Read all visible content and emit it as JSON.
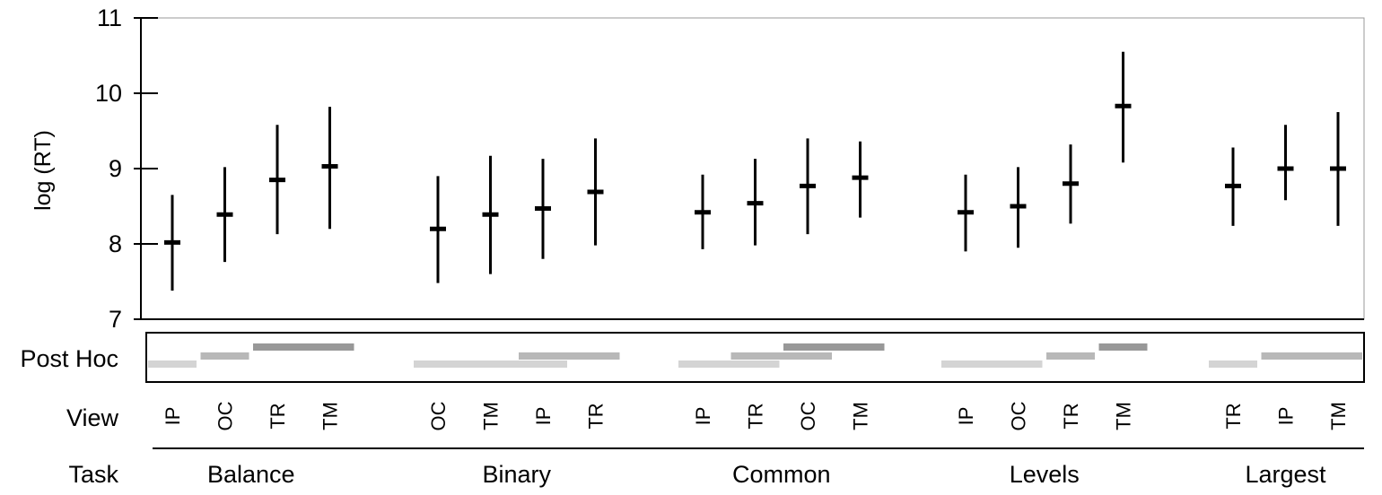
{
  "chart_data": {
    "type": "scatter",
    "subtype": "mean-with-range",
    "ylabel": "log (RT)",
    "ylim": [
      7,
      11
    ],
    "yticks": [
      7,
      8,
      9,
      10,
      11
    ],
    "grid": false,
    "row_labels": {
      "posthoc": "Post Hoc",
      "view": "View",
      "task": "Task"
    },
    "groups": [
      {
        "task": "Balance",
        "conditions": [
          {
            "view": "IP",
            "mean": 8.02,
            "low": 7.38,
            "high": 8.65
          },
          {
            "view": "OC",
            "mean": 8.39,
            "low": 7.76,
            "high": 9.02
          },
          {
            "view": "TR",
            "mean": 8.85,
            "low": 8.13,
            "high": 9.58
          },
          {
            "view": "TM",
            "mean": 9.03,
            "low": 8.2,
            "high": 9.82
          }
        ],
        "posthoc": [
          {
            "from": 0,
            "to": 0,
            "tone": "light",
            "level": 0
          },
          {
            "from": 1,
            "to": 1,
            "tone": "mid",
            "level": 1
          },
          {
            "from": 2,
            "to": 3,
            "tone": "dark",
            "level": 2
          }
        ]
      },
      {
        "task": "Binary",
        "conditions": [
          {
            "view": "OC",
            "mean": 8.2,
            "low": 7.48,
            "high": 8.9
          },
          {
            "view": "TM",
            "mean": 8.39,
            "low": 7.6,
            "high": 9.17
          },
          {
            "view": "IP",
            "mean": 8.47,
            "low": 7.8,
            "high": 9.13
          },
          {
            "view": "TR",
            "mean": 8.69,
            "low": 7.98,
            "high": 9.4
          }
        ],
        "posthoc": [
          {
            "from": 0,
            "to": 2,
            "tone": "light",
            "level": 0
          },
          {
            "from": 2,
            "to": 3,
            "tone": "mid",
            "level": 1
          }
        ]
      },
      {
        "task": "Common",
        "conditions": [
          {
            "view": "IP",
            "mean": 8.42,
            "low": 7.93,
            "high": 8.92
          },
          {
            "view": "TR",
            "mean": 8.54,
            "low": 7.98,
            "high": 9.13
          },
          {
            "view": "OC",
            "mean": 8.77,
            "low": 8.13,
            "high": 9.4
          },
          {
            "view": "TM",
            "mean": 8.88,
            "low": 8.35,
            "high": 9.36
          }
        ],
        "posthoc": [
          {
            "from": 0,
            "to": 1,
            "tone": "light",
            "level": 0
          },
          {
            "from": 1,
            "to": 2,
            "tone": "mid",
            "level": 1
          },
          {
            "from": 2,
            "to": 3,
            "tone": "dark",
            "level": 2
          }
        ]
      },
      {
        "task": "Levels",
        "conditions": [
          {
            "view": "IP",
            "mean": 8.42,
            "low": 7.9,
            "high": 8.92
          },
          {
            "view": "OC",
            "mean": 8.5,
            "low": 7.95,
            "high": 9.02
          },
          {
            "view": "TR",
            "mean": 8.8,
            "low": 8.27,
            "high": 9.32
          },
          {
            "view": "TM",
            "mean": 9.83,
            "low": 9.08,
            "high": 10.55
          }
        ],
        "posthoc": [
          {
            "from": 0,
            "to": 1,
            "tone": "light",
            "level": 0
          },
          {
            "from": 2,
            "to": 2,
            "tone": "mid",
            "level": 1
          },
          {
            "from": 3,
            "to": 3,
            "tone": "dark",
            "level": 2
          }
        ]
      },
      {
        "task": "Largest",
        "conditions": [
          {
            "view": "TR",
            "mean": 8.77,
            "low": 8.24,
            "high": 9.28
          },
          {
            "view": "IP",
            "mean": 9.0,
            "low": 8.58,
            "high": 9.58
          },
          {
            "view": "TM",
            "mean": 9.0,
            "low": 8.24,
            "high": 9.75
          }
        ],
        "posthoc": [
          {
            "from": 0,
            "to": 0,
            "tone": "light",
            "level": 0
          },
          {
            "from": 1,
            "to": 2,
            "tone": "mid",
            "level": 1
          }
        ]
      }
    ],
    "colors": {
      "marker": "#000000",
      "axis": "#000000",
      "frame": "#999999",
      "posthoc_light": "#d4d4d4",
      "posthoc_mid": "#b8b8b8",
      "posthoc_dark": "#989898"
    }
  }
}
